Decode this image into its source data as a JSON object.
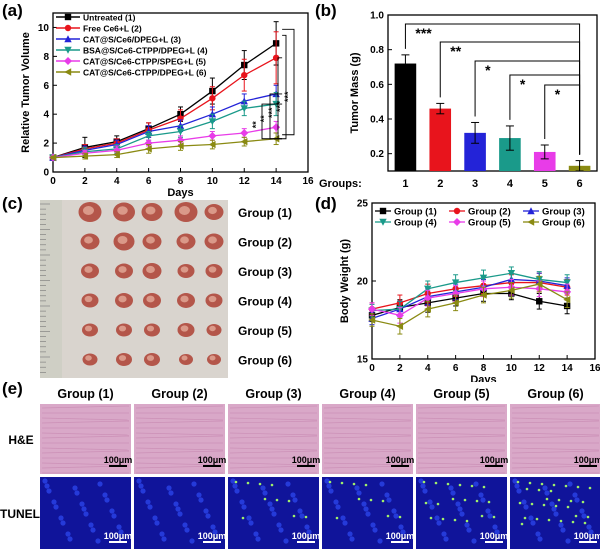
{
  "panel_labels": [
    "(a)",
    "(b)",
    "(c)",
    "(d)",
    "(e)"
  ],
  "colors": {
    "g1": "#000000",
    "g2": "#e8141c",
    "g3": "#2323d8",
    "g4": "#1a9a8a",
    "g5": "#e83ce8",
    "g6": "#8a8a12"
  },
  "chart_data": [
    {
      "type": "line",
      "panel": "(a)",
      "xlabel": "Days",
      "ylabel": "Relative Tumor Volume",
      "xlim": [
        0,
        16
      ],
      "ylim": [
        0,
        11
      ],
      "xticks": [
        "0",
        "2",
        "4",
        "6",
        "8",
        "10",
        "12",
        "14",
        "16"
      ],
      "yticks": [
        "0",
        "2",
        "4",
        "6",
        "8",
        "10"
      ],
      "x": [
        0,
        2,
        4,
        6,
        8,
        10,
        12,
        14
      ],
      "series": [
        {
          "name": "Untreated (1)",
          "color": "#000000",
          "marker": "square",
          "values": [
            1.0,
            1.7,
            2.1,
            3.0,
            4.0,
            5.6,
            7.4,
            8.9
          ],
          "err": [
            0.1,
            0.7,
            0.4,
            0.4,
            0.5,
            0.9,
            1.0,
            1.5
          ]
        },
        {
          "name": "Free Ce6+L (2)",
          "color": "#e8141c",
          "marker": "circle",
          "values": [
            1.0,
            1.6,
            2.0,
            2.9,
            3.7,
            5.1,
            6.7,
            7.9
          ],
          "err": [
            0.1,
            0.3,
            0.3,
            0.5,
            0.6,
            0.8,
            1.1,
            1.8
          ]
        },
        {
          "name": "CAT@S/Ce6/DPEG+L (3)",
          "color": "#2323d8",
          "marker": "triangle",
          "values": [
            1.0,
            1.5,
            1.9,
            2.8,
            3.2,
            4.0,
            4.9,
            5.4
          ],
          "err": [
            0.1,
            0.3,
            0.3,
            0.4,
            0.4,
            0.5,
            0.5,
            0.6
          ]
        },
        {
          "name": "BSA@S/Ce6-CTPP/DPEG+L (4)",
          "color": "#1a9a8a",
          "marker": "triangle-down",
          "values": [
            1.0,
            1.4,
            1.6,
            2.5,
            2.8,
            3.5,
            4.4,
            4.7
          ],
          "err": [
            0.1,
            0.3,
            0.3,
            0.3,
            0.4,
            0.5,
            0.5,
            0.8
          ]
        },
        {
          "name": "CAT@S/Ce6-CTPP/SPEG+L (5)",
          "color": "#e83ce8",
          "marker": "diamond",
          "values": [
            1.0,
            1.3,
            1.5,
            2.0,
            2.2,
            2.5,
            2.7,
            3.1
          ],
          "err": [
            0.1,
            0.2,
            0.3,
            0.2,
            0.3,
            0.3,
            0.3,
            0.4
          ]
        },
        {
          "name": "CAT@S/Ce6-CTPP/DPEG+L (6)",
          "color": "#8a8a12",
          "marker": "triangle-left",
          "values": [
            1.0,
            1.1,
            1.2,
            1.6,
            1.8,
            1.9,
            2.1,
            2.3
          ],
          "err": [
            0.1,
            0.2,
            0.2,
            0.3,
            0.3,
            0.3,
            0.3,
            0.4
          ]
        }
      ],
      "significance": [
        "**",
        "**",
        "***",
        "***",
        "***"
      ]
    },
    {
      "type": "bar",
      "panel": "(b)",
      "ylabel": "Tumor Mass (g)",
      "xlabel": "Groups:",
      "categories": [
        "1",
        "2",
        "3",
        "4",
        "5",
        "6"
      ],
      "values": [
        0.72,
        0.46,
        0.32,
        0.29,
        0.21,
        0.13
      ],
      "err": [
        0.05,
        0.03,
        0.06,
        0.07,
        0.04,
        0.03
      ],
      "ylim": [
        0.1,
        1.0
      ],
      "yticks": [
        "0.2",
        "0.4",
        "0.6",
        "0.8",
        "1.0"
      ],
      "significance": [
        "***",
        "**",
        "*",
        "*",
        "*"
      ]
    },
    {
      "type": "line",
      "panel": "(d)",
      "xlabel": "Days",
      "ylabel": "Body Weight (g)",
      "xlim": [
        0,
        16
      ],
      "ylim": [
        15,
        25
      ],
      "xticks": [
        "0",
        "2",
        "4",
        "6",
        "8",
        "10",
        "12",
        "14",
        "16"
      ],
      "yticks": [
        "15",
        "20",
        "25"
      ],
      "x": [
        0,
        2,
        4,
        6,
        8,
        10,
        12,
        14
      ],
      "series": [
        {
          "name": "Group (1)",
          "color": "#000000",
          "marker": "square",
          "values": [
            17.8,
            18.3,
            18.6,
            18.9,
            19.2,
            19.2,
            18.7,
            18.4
          ],
          "err": [
            0.4,
            0.5,
            0.6,
            0.5,
            0.5,
            0.4,
            0.5,
            0.5
          ]
        },
        {
          "name": "Group (2)",
          "color": "#e8141c",
          "marker": "circle",
          "values": [
            18.2,
            18.6,
            19.2,
            19.5,
            19.7,
            19.9,
            19.9,
            19.6
          ],
          "err": [
            0.4,
            0.5,
            0.6,
            0.5,
            0.5,
            0.5,
            0.6,
            0.5
          ]
        },
        {
          "name": "Group (3)",
          "color": "#2323d8",
          "marker": "triangle",
          "values": [
            17.6,
            18.2,
            19.0,
            19.3,
            19.6,
            20.1,
            20.0,
            19.7
          ],
          "err": [
            0.4,
            0.5,
            0.5,
            0.5,
            0.5,
            0.5,
            0.5,
            0.5
          ]
        },
        {
          "name": "Group (4)",
          "color": "#1a9a8a",
          "marker": "triangle-down",
          "values": [
            18.1,
            18.2,
            19.5,
            19.9,
            20.2,
            20.5,
            20.1,
            19.9
          ],
          "err": [
            0.4,
            0.5,
            0.5,
            0.5,
            0.5,
            0.4,
            0.5,
            0.5
          ]
        },
        {
          "name": "Group (5)",
          "color": "#e83ce8",
          "marker": "diamond",
          "values": [
            18.2,
            17.8,
            18.9,
            19.2,
            19.5,
            19.6,
            19.5,
            19.3
          ],
          "err": [
            0.4,
            0.5,
            0.5,
            0.5,
            0.5,
            0.5,
            0.5,
            0.5
          ]
        },
        {
          "name": "Group (6)",
          "color": "#8a8a12",
          "marker": "triangle-left",
          "values": [
            17.5,
            17.1,
            18.2,
            18.6,
            19.1,
            19.4,
            19.8,
            18.8
          ],
          "err": [
            0.4,
            0.5,
            0.5,
            0.5,
            0.5,
            0.5,
            0.5,
            0.5
          ]
        }
      ]
    }
  ],
  "panel_c": {
    "rows": [
      "Group (1)",
      "Group (2)",
      "Group (3)",
      "Group (4)",
      "Group (5)",
      "Group (6)"
    ]
  },
  "panel_e": {
    "columns": [
      "Group (1)",
      "Group (2)",
      "Group (3)",
      "Group (4)",
      "Group (5)",
      "Group (6)"
    ],
    "rows": [
      "H&E",
      "TUNEL"
    ],
    "scale_label": "100μm"
  }
}
